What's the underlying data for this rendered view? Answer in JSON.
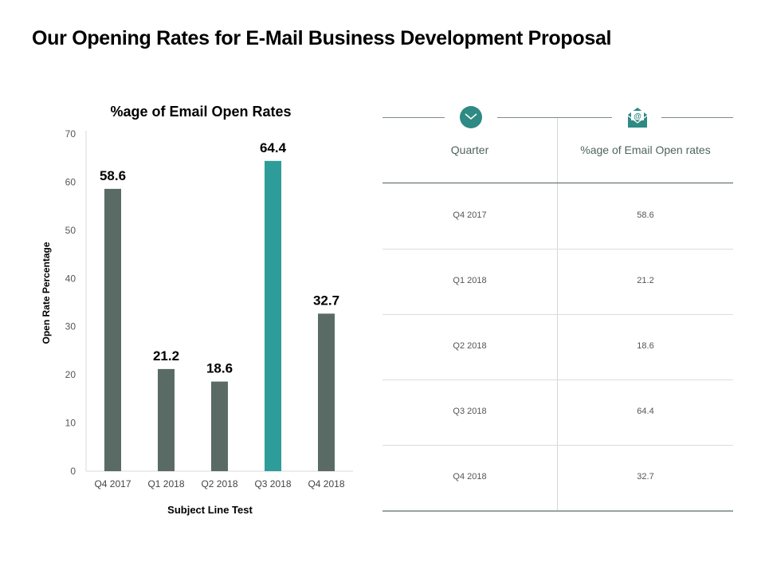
{
  "page": {
    "title": "Our Opening Rates for E-Mail Business Development Proposal"
  },
  "colors": {
    "bar": "#5a6b65",
    "highlight": "#2e9c99",
    "icon": "#2e8a82"
  },
  "chart_data": {
    "type": "bar",
    "title": "%age of Email Open Rates",
    "xlabel": "Subject Line Test",
    "ylabel": "Open Rate Percentage",
    "categories": [
      "Q4 2017",
      "Q1 2018",
      "Q2 2018",
      "Q3 2018",
      "Q4 2018"
    ],
    "values": [
      58.6,
      21.2,
      18.6,
      64.4,
      32.7
    ],
    "value_labels": [
      "58.6",
      "21.2",
      "18.6",
      "64.4",
      "32.7"
    ],
    "highlight_index": 3,
    "ylim": [
      0,
      70
    ],
    "yticks": [
      0,
      10,
      20,
      30,
      40,
      50,
      60,
      70
    ],
    "grid": false
  },
  "table": {
    "headers": [
      "Quarter",
      "%age of Email Open rates"
    ],
    "icons": [
      "envelope-closed-icon",
      "envelope-at-icon"
    ],
    "rows": [
      [
        "Q4 2017",
        "58.6"
      ],
      [
        "Q1 2018",
        "21.2"
      ],
      [
        "Q2 2018",
        "18.6"
      ],
      [
        "Q3 2018",
        "64.4"
      ],
      [
        "Q4 2018",
        "32.7"
      ]
    ]
  }
}
